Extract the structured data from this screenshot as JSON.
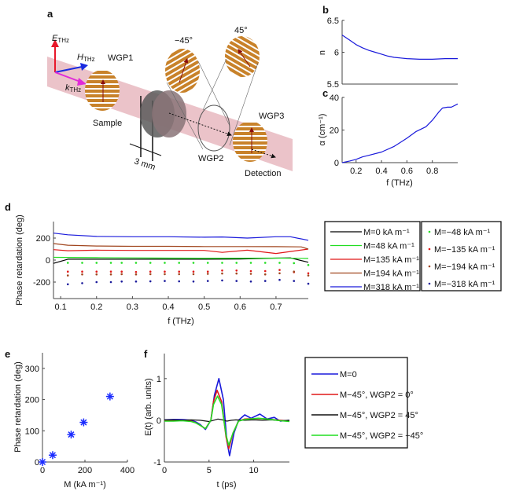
{
  "panel_labels": [
    "a",
    "b",
    "c",
    "d",
    "e",
    "f"
  ],
  "diagram": {
    "e_label": "E",
    "e_sub": "THz",
    "h_label": "H",
    "h_sub": "THz",
    "k_label": "k",
    "k_sub": "THz",
    "wgp1": "WGP1",
    "sample": "Sample",
    "minus45": "−45°",
    "plus45": "45°",
    "wgp2": "WGP2",
    "wgp3": "WGP3",
    "detection": "Detection",
    "thickness": "3 mm",
    "colors": {
      "beam": "#e8b9c0",
      "grid": "#c8822a",
      "e_arrow": "#e8182a",
      "h_arrow": "#1a2be0",
      "k_arrow": "#e02ad8",
      "sample": "#5a5a5a"
    }
  },
  "chart_data": [
    {
      "id": "b",
      "type": "line",
      "xlabel": "",
      "ylabel": "n",
      "xlim": [
        0.09,
        1.0
      ],
      "ylim": [
        5.5,
        6.5
      ],
      "yticks": [
        5.5,
        6,
        6.5
      ],
      "xticks": [],
      "series": [
        {
          "color": "#1a1adb",
          "x": [
            0.09,
            0.15,
            0.2,
            0.25,
            0.3,
            0.35,
            0.4,
            0.45,
            0.5,
            0.6,
            0.7,
            0.8,
            0.9,
            1.0
          ],
          "y": [
            6.27,
            6.19,
            6.12,
            6.07,
            6.03,
            6.0,
            5.97,
            5.94,
            5.92,
            5.9,
            5.89,
            5.89,
            5.9,
            5.9
          ]
        }
      ]
    },
    {
      "id": "c",
      "type": "line",
      "xlabel": "f (THz)",
      "ylabel": "α (cm⁻¹)",
      "xlim": [
        0.09,
        1.0
      ],
      "ylim": [
        0,
        40
      ],
      "yticks": [
        0,
        20,
        40
      ],
      "xticks": [
        0.2,
        0.4,
        0.6,
        0.8
      ],
      "series": [
        {
          "color": "#1a1adb",
          "x": [
            0.09,
            0.15,
            0.2,
            0.25,
            0.3,
            0.4,
            0.5,
            0.6,
            0.67,
            0.75,
            0.8,
            0.85,
            0.88,
            0.92,
            0.95,
            1.0
          ],
          "y": [
            0,
            1,
            2,
            3.5,
            4.5,
            6.5,
            10,
            15,
            19,
            22,
            26,
            31,
            33.5,
            34,
            34,
            36
          ]
        }
      ]
    },
    {
      "id": "d",
      "type": "line",
      "xlabel": "f (THz)",
      "ylabel": "Phase retardation (deg)",
      "xlim": [
        0.08,
        0.79
      ],
      "ylim": [
        -350,
        350
      ],
      "yticks": [
        -200,
        0,
        200
      ],
      "xticks": [
        0.1,
        0.2,
        0.3,
        0.4,
        0.5,
        0.6,
        0.7
      ],
      "series": [
        {
          "name": "M=0 kA m⁻¹",
          "color": "#000000",
          "style": "line",
          "x": [
            0.08,
            0.12,
            0.2,
            0.3,
            0.4,
            0.5,
            0.6,
            0.7,
            0.74,
            0.79
          ],
          "y": [
            -30,
            8,
            8,
            8,
            8,
            8,
            10,
            18,
            20,
            -20
          ]
        },
        {
          "name": "M=48 kA m⁻¹",
          "color": "#22dd22",
          "style": "line",
          "x": [
            0.08,
            0.2,
            0.3,
            0.4,
            0.5,
            0.6,
            0.7,
            0.79
          ],
          "y": [
            25,
            22,
            20,
            18,
            17,
            17,
            18,
            15
          ]
        },
        {
          "name": "M=135 kA m⁻¹",
          "color": "#e01818",
          "style": "line",
          "x": [
            0.08,
            0.12,
            0.2,
            0.3,
            0.4,
            0.5,
            0.55,
            0.62,
            0.7,
            0.74,
            0.79
          ],
          "y": [
            95,
            85,
            90,
            88,
            88,
            88,
            70,
            90,
            60,
            78,
            100
          ]
        },
        {
          "name": "M=194 kA m⁻¹",
          "color": "#a0451e",
          "style": "line",
          "x": [
            0.08,
            0.12,
            0.2,
            0.3,
            0.4,
            0.5,
            0.6,
            0.7,
            0.77,
            0.79
          ],
          "y": [
            150,
            135,
            128,
            125,
            125,
            123,
            123,
            122,
            120,
            100
          ]
        },
        {
          "name": "M=318 kA m⁻¹",
          "color": "#1a1adb",
          "style": "line",
          "x": [
            0.08,
            0.12,
            0.2,
            0.3,
            0.4,
            0.5,
            0.55,
            0.62,
            0.7,
            0.74,
            0.79
          ],
          "y": [
            245,
            230,
            215,
            212,
            212,
            208,
            210,
            200,
            212,
            212,
            180
          ]
        },
        {
          "name": "M=−48 kA m⁻¹",
          "color": "#22dd22",
          "style": "dot",
          "x": [
            0.12,
            0.16,
            0.2,
            0.24,
            0.27,
            0.31,
            0.35,
            0.39,
            0.43,
            0.47,
            0.51,
            0.55,
            0.59,
            0.63,
            0.67,
            0.71,
            0.75,
            0.79
          ],
          "y": [
            -25,
            -25,
            -25,
            -25,
            -25,
            -25,
            -25,
            -25,
            -25,
            -25,
            -25,
            -25,
            -25,
            -25,
            -25,
            -25,
            -28,
            -45
          ]
        },
        {
          "name": "M=−135 kA m⁻¹",
          "color": "#e01818",
          "style": "dot",
          "x": [
            0.12,
            0.16,
            0.2,
            0.24,
            0.27,
            0.31,
            0.35,
            0.39,
            0.43,
            0.47,
            0.51,
            0.55,
            0.59,
            0.63,
            0.67,
            0.71,
            0.75,
            0.79
          ],
          "y": [
            -105,
            -105,
            -105,
            -105,
            -105,
            -108,
            -105,
            -105,
            -105,
            -105,
            -105,
            -95,
            -95,
            -100,
            -100,
            -90,
            -110,
            -120
          ]
        },
        {
          "name": "M=−194 kA m⁻¹",
          "color": "#a0451e",
          "style": "dot",
          "x": [
            0.12,
            0.16,
            0.2,
            0.24,
            0.27,
            0.31,
            0.35,
            0.39,
            0.43,
            0.47,
            0.51,
            0.55,
            0.59,
            0.63,
            0.67,
            0.71,
            0.75,
            0.79
          ],
          "y": [
            -140,
            -130,
            -130,
            -130,
            -128,
            -130,
            -128,
            -128,
            -128,
            -128,
            -125,
            -122,
            -122,
            -125,
            -130,
            -120,
            -105,
            -140
          ]
        },
        {
          "name": "M=−318 kA m⁻¹",
          "color": "#1a1a9b",
          "style": "dot",
          "x": [
            0.12,
            0.16,
            0.2,
            0.24,
            0.27,
            0.31,
            0.35,
            0.39,
            0.43,
            0.47,
            0.51,
            0.55,
            0.59,
            0.63,
            0.67,
            0.71,
            0.75,
            0.79
          ],
          "y": [
            -220,
            -210,
            -200,
            -200,
            -195,
            -195,
            -193,
            -190,
            -193,
            -195,
            -190,
            -185,
            -190,
            -195,
            -190,
            -180,
            -190,
            -215
          ]
        }
      ]
    },
    {
      "id": "e",
      "type": "scatter",
      "xlabel": "M (kA m⁻¹)",
      "ylabel": "Phase retardation (deg)",
      "xlim": [
        0,
        400
      ],
      "ylim": [
        0,
        350
      ],
      "xticks": [
        0,
        200,
        400
      ],
      "yticks": [
        0,
        100,
        200,
        300
      ],
      "series": [
        {
          "color": "#1a2bff",
          "x": [
            0,
            48,
            135,
            194,
            318
          ],
          "y": [
            0,
            22,
            88,
            127,
            210
          ]
        }
      ]
    },
    {
      "id": "f",
      "type": "line",
      "xlabel": "t (ps)",
      "ylabel": "E(t) (arb. units)",
      "xlim": [
        0,
        14
      ],
      "ylim": [
        -1,
        1.6
      ],
      "xticks": [
        0,
        5,
        10
      ],
      "yticks": [
        -1,
        0,
        1
      ],
      "series": [
        {
          "name": "M=0",
          "color": "#1a1adb",
          "x": [
            0,
            1,
            2,
            3,
            3.5,
            4,
            4.6,
            5.2,
            5.6,
            6.1,
            6.6,
            7.0,
            7.3,
            7.8,
            8.3,
            9,
            9.7,
            10.7,
            11.5,
            12.3,
            13,
            14
          ],
          "y": [
            0.01,
            0.02,
            0.02,
            0,
            -0.04,
            -0.1,
            -0.22,
            0,
            0.6,
            1.0,
            0.5,
            -0.5,
            -0.85,
            -0.3,
            0,
            0.13,
            0.05,
            0.15,
            0.03,
            0.07,
            -0.02,
            0
          ]
        },
        {
          "name": "M−45°, WGP2 = 0°",
          "color": "#e01818",
          "x": [
            0,
            1,
            2,
            3,
            3.5,
            4,
            4.6,
            5.2,
            5.5,
            5.9,
            6.4,
            6.9,
            7.2,
            7.7,
            8.3,
            9,
            10,
            11,
            12,
            13,
            14
          ],
          "y": [
            0,
            0,
            0,
            -0.02,
            -0.06,
            -0.12,
            -0.2,
            0,
            0.45,
            0.72,
            0.45,
            -0.4,
            -0.68,
            -0.3,
            -0.02,
            0.03,
            0.04,
            0.04,
            0.02,
            0,
            -0.02
          ]
        },
        {
          "name": "M−45°, WGP2 = 45°",
          "color": "#111111",
          "x": [
            0,
            1,
            2,
            3,
            4,
            5,
            5.5,
            6,
            6.5,
            7,
            7.5,
            8,
            9,
            10,
            11,
            12,
            13,
            14
          ],
          "y": [
            0.01,
            0.01,
            0,
            0.01,
            0,
            -0.03,
            0,
            0.03,
            0.01,
            -0.02,
            0,
            0.01,
            0,
            0.01,
            0,
            0.01,
            -0.01,
            0
          ]
        },
        {
          "name": "M−45°, WGP2 = −45°",
          "color": "#22dd22",
          "x": [
            0,
            1,
            2,
            3,
            3.5,
            4,
            4.6,
            5.2,
            5.5,
            5.95,
            6.4,
            6.9,
            7.2,
            7.7,
            8.3,
            9,
            10,
            10.5,
            11,
            12,
            13,
            14
          ],
          "y": [
            -0.02,
            -0.02,
            -0.01,
            -0.03,
            -0.06,
            -0.12,
            -0.2,
            0,
            0.38,
            0.58,
            0.38,
            -0.35,
            -0.6,
            -0.3,
            -0.02,
            0.02,
            0.04,
            0.05,
            0.04,
            0.02,
            -0.01,
            -0.03
          ]
        }
      ]
    }
  ]
}
